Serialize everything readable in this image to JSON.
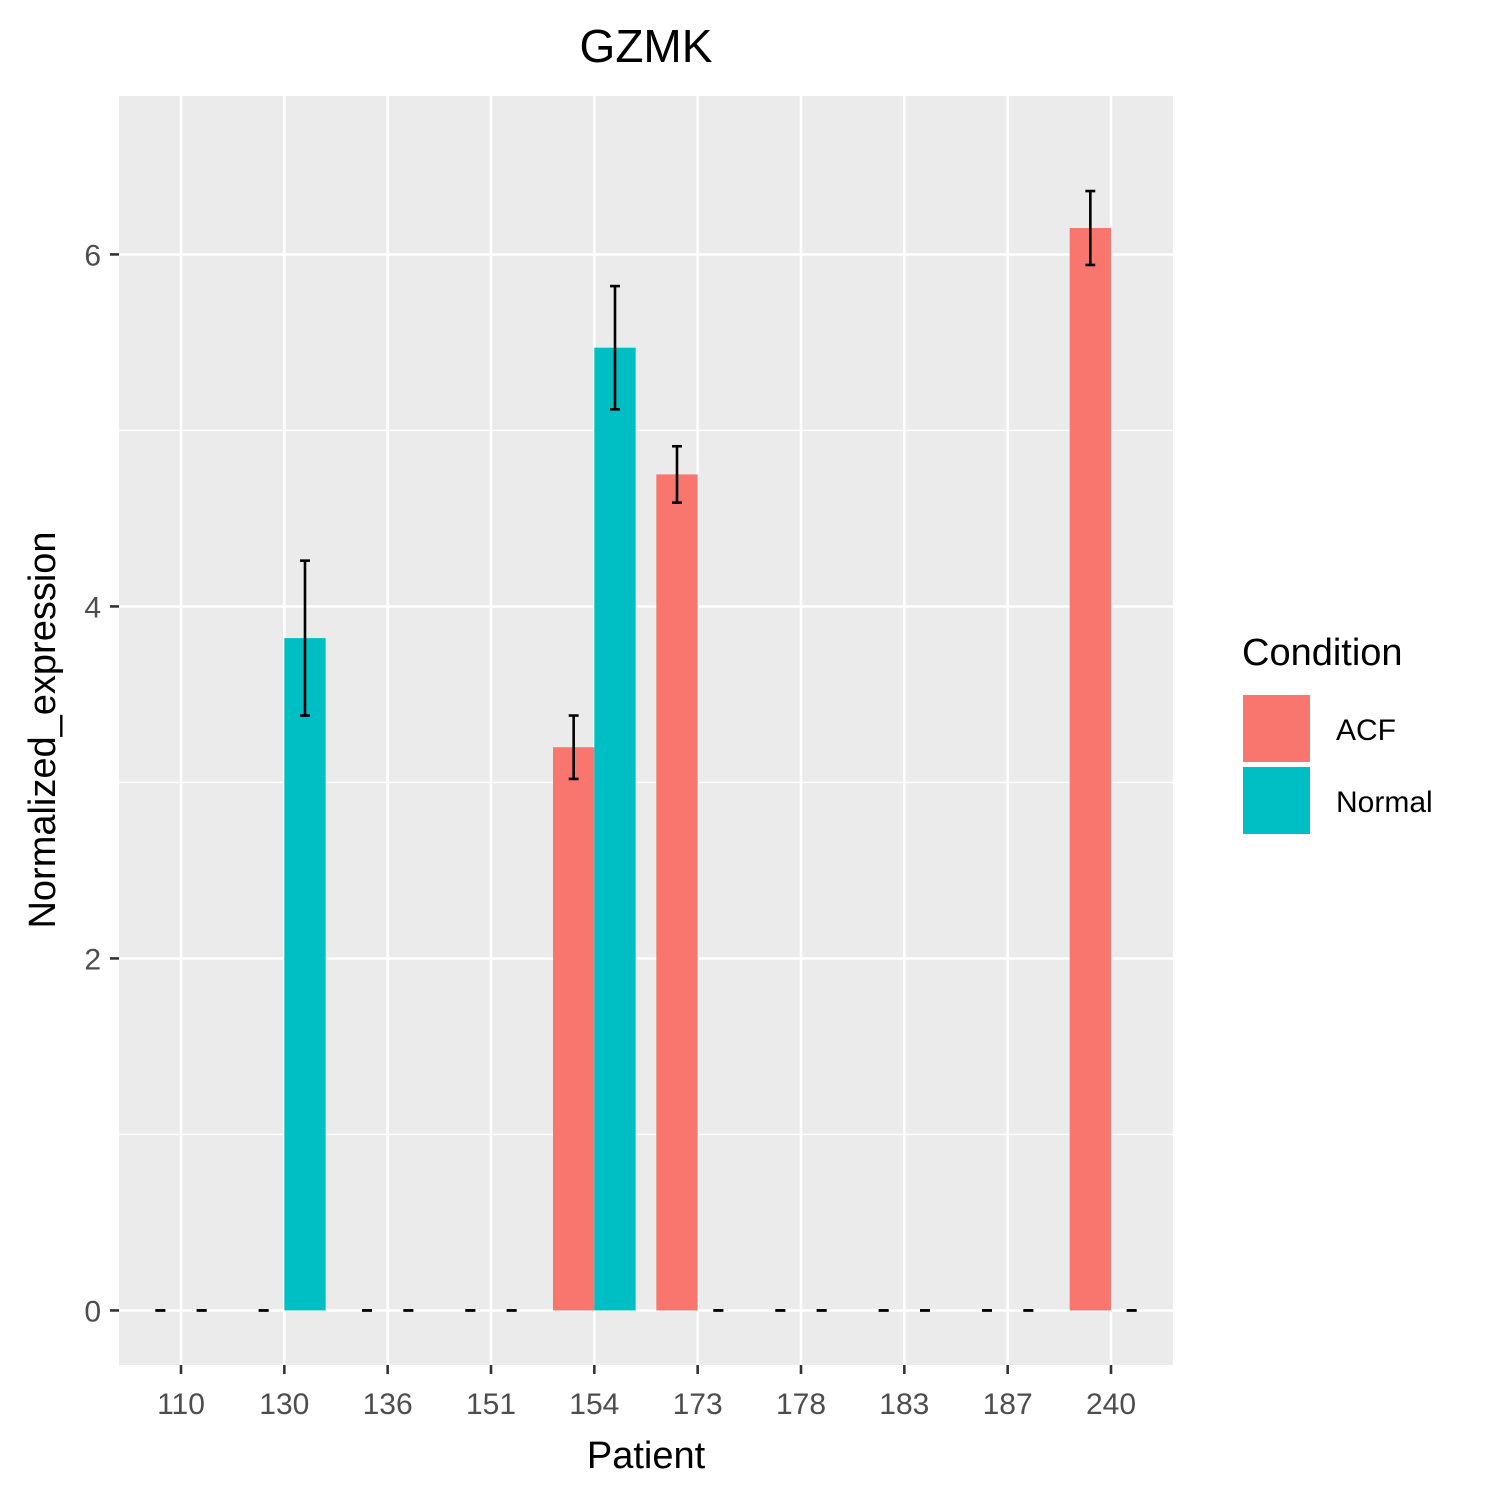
{
  "chart_data": {
    "type": "bar",
    "title": "GZMK",
    "xlabel": "Patient",
    "ylabel": "Normalized_expression",
    "categories": [
      "110",
      "130",
      "136",
      "151",
      "154",
      "173",
      "178",
      "183",
      "187",
      "240"
    ],
    "ylim": [
      -0.31,
      6.9
    ],
    "yticks": [
      0,
      2,
      4,
      6
    ],
    "grid": true,
    "legend": {
      "title": "Condition",
      "placement": "right",
      "entries": [
        {
          "name": "ACF",
          "color": "#F8766D"
        },
        {
          "name": "Normal",
          "color": "#00BFC4"
        }
      ]
    },
    "series": [
      {
        "name": "ACF",
        "color": "#F8766D",
        "values": [
          0,
          0,
          0,
          0,
          3.2,
          4.75,
          0,
          0,
          0,
          6.15
        ],
        "error": [
          0,
          0,
          0,
          0,
          0.18,
          0.16,
          0,
          0,
          0,
          0.21
        ]
      },
      {
        "name": "Normal",
        "color": "#00BFC4",
        "values": [
          0,
          3.82,
          0,
          0,
          5.47,
          0,
          0,
          0,
          0,
          0
        ],
        "error": [
          0,
          0.44,
          0,
          0,
          0.35,
          0,
          0,
          0,
          0,
          0
        ]
      }
    ]
  }
}
